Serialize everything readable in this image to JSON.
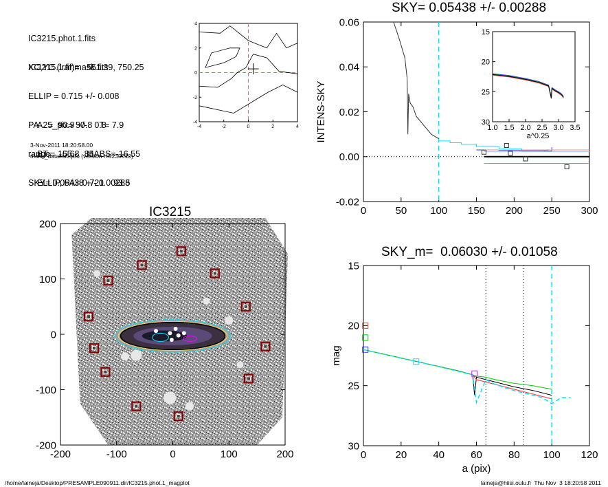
{
  "header_info": {
    "lines_a": [
      "IC3215.phot.1.fits",
      "IC3215.1.finmask.fits"
    ],
    "lines_b": [
      "XC,YC (iraf)=   551.39, 750.25",
      "ELLIP = 0.715 +/- 0.008",
      "PA    =  90.9 +/-   0.8",
      "range=   65.-   85.",
      "SKY= 0.05438 +/- 0.00288"
    ],
    "lines_c": [
      "A25_pix= 50.8   T= 7.9",
      "BT=  15.68   MABS=-16.55",
      "ELLIP, PA= 0.721    93.5"
    ],
    "date": "3-Nov-2011 18:20:58.00",
    "program": "make_datalist0.pro (version HS230610)"
  },
  "footer": {
    "left": "/home/laineja/Desktop/PRESAMPLE090911.dir/IC3215.phot.1_magplot",
    "right": "laineja@hiisi.oulu.fi  Thu Nov  3 18:20:58 2011"
  },
  "colors": {
    "cyan": "#00e5ff",
    "red": "#ff3030",
    "green": "#00cc00",
    "blue": "#2a3cff",
    "magenta": "#ff00ff",
    "orange": "#ff8800"
  },
  "chart_data": [
    {
      "type": "line",
      "name": "contour-thumbnail",
      "xlim": [
        -4,
        4
      ],
      "ylim": [
        -4,
        4
      ],
      "xticks": [
        "-4",
        "-2",
        "0",
        "2",
        "4"
      ],
      "yticks": [
        "-4",
        "-2",
        "0",
        "2",
        "4"
      ],
      "center_marker": [
        0.4,
        0.3
      ]
    },
    {
      "type": "line",
      "title": "SKY= 0.05438 +/- 0.00288",
      "xlabel": "",
      "ylabel": "INTENS-SKY",
      "xlim": [
        0,
        300
      ],
      "ylim": [
        -0.02,
        0.06
      ],
      "xticks": [
        "0",
        "50",
        "100",
        "150",
        "200",
        "250",
        "300"
      ],
      "yticks": [
        "-0.02",
        "0.00",
        "0.02",
        "0.04",
        "0.06"
      ],
      "vline": 100,
      "profile": {
        "x": [
          40,
          48,
          55,
          58,
          59,
          60,
          62,
          66,
          70,
          75,
          80,
          85,
          90,
          95,
          100
        ],
        "y": [
          0.06,
          0.052,
          0.044,
          0.035,
          0.01,
          0.028,
          0.024,
          0.022,
          0.018,
          0.016,
          0.014,
          0.012,
          0.01,
          0.009,
          0.008
        ]
      },
      "sky_squares": {
        "x": [
          160,
          190,
          215,
          195,
          270
        ],
        "y": [
          0.002,
          0.005,
          -0.001,
          0.0015,
          -0.0045
        ]
      },
      "sky_line": {
        "x": [
          160,
          300
        ],
        "y": 0.0
      },
      "inset": {
        "xlabel": "a^0.25",
        "xlim": [
          1.0,
          3.5
        ],
        "ylim": [
          15,
          30
        ],
        "xticks": [
          "1.0",
          "1.5",
          "2.0",
          "2.5",
          "3.0",
          "3.5"
        ],
        "yticks": [
          "15",
          "20",
          "25",
          "30"
        ],
        "x": [
          1.0,
          1.5,
          2.0,
          2.4,
          2.7,
          2.78,
          2.8,
          2.9,
          3.0,
          3.1,
          3.15
        ],
        "y": [
          22.1,
          22.4,
          22.9,
          23.4,
          24.0,
          26.0,
          24.4,
          24.8,
          25.1,
          25.5,
          25.9
        ]
      }
    },
    {
      "type": "scatter",
      "title": "IC3215",
      "xlim": [
        -200,
        200
      ],
      "ylim": [
        -200,
        200
      ],
      "xticks": [
        "-200",
        "-100",
        "0",
        "100",
        "200"
      ],
      "yticks": [
        "-200",
        "-100",
        "0",
        "100",
        "200"
      ],
      "sky_boxes": {
        "x": [
          15,
          -55,
          75,
          -115,
          130,
          -150,
          165,
          -140,
          -120,
          135,
          -65,
          10
        ],
        "y": [
          150,
          125,
          110,
          97,
          50,
          32,
          -22,
          -25,
          -68,
          -80,
          -130,
          -148
        ]
      },
      "ellipse": {
        "a": 100,
        "b": 28
      }
    },
    {
      "type": "line",
      "title": "SKY_m=  0.06030 +/- 0.01058",
      "xlabel": "a (pix)",
      "ylabel": "mag",
      "xlim": [
        0,
        120
      ],
      "ylim": [
        30,
        15
      ],
      "xticks": [
        "0",
        "20",
        "40",
        "60",
        "80",
        "100",
        "120"
      ],
      "yticks": [
        "15",
        "20",
        "25",
        "30"
      ],
      "vlines_dotted": [
        65,
        85
      ],
      "vline_dashed": 100,
      "series": [
        {
          "color": "black",
          "x": [
            0,
            10,
            20,
            30,
            40,
            50,
            58,
            59,
            60,
            65,
            70,
            80,
            90,
            100
          ],
          "y": [
            22.0,
            22.35,
            22.7,
            23.05,
            23.4,
            23.75,
            24.1,
            25.8,
            24.3,
            24.5,
            24.7,
            25.1,
            25.4,
            25.8
          ]
        },
        {
          "color": "red",
          "x": [
            0,
            10,
            20,
            30,
            40,
            50,
            58,
            60,
            65,
            70,
            80,
            90,
            100
          ],
          "y": [
            22.0,
            22.35,
            22.7,
            23.05,
            23.4,
            23.75,
            24.1,
            24.5,
            24.7,
            24.9,
            25.3,
            25.7,
            26.1
          ]
        },
        {
          "color": "green",
          "x": [
            0,
            10,
            20,
            30,
            40,
            50,
            58,
            60,
            65,
            70,
            80,
            90,
            100
          ],
          "y": [
            22.0,
            22.35,
            22.7,
            23.05,
            23.4,
            23.75,
            24.1,
            24.2,
            24.3,
            24.5,
            24.8,
            25.0,
            25.3
          ]
        },
        {
          "color": "cyan",
          "x": [
            0,
            30,
            58,
            60,
            65,
            70,
            80,
            90,
            95,
            100,
            105,
            110
          ],
          "y": [
            22.0,
            23.05,
            24.1,
            26.4,
            24.5,
            24.9,
            25.4,
            25.8,
            26.0,
            26.5,
            26.0,
            26.0
          ]
        }
      ],
      "markers": [
        {
          "color": "red",
          "x": 1,
          "y": 20.0
        },
        {
          "color": "green",
          "x": 1,
          "y": 21.0
        },
        {
          "color": "blue",
          "x": 1,
          "y": 22.0
        },
        {
          "color": "cyan",
          "x": 28,
          "y": 23.0
        },
        {
          "color": "magenta",
          "x": 59,
          "y": 24.0
        }
      ]
    }
  ]
}
